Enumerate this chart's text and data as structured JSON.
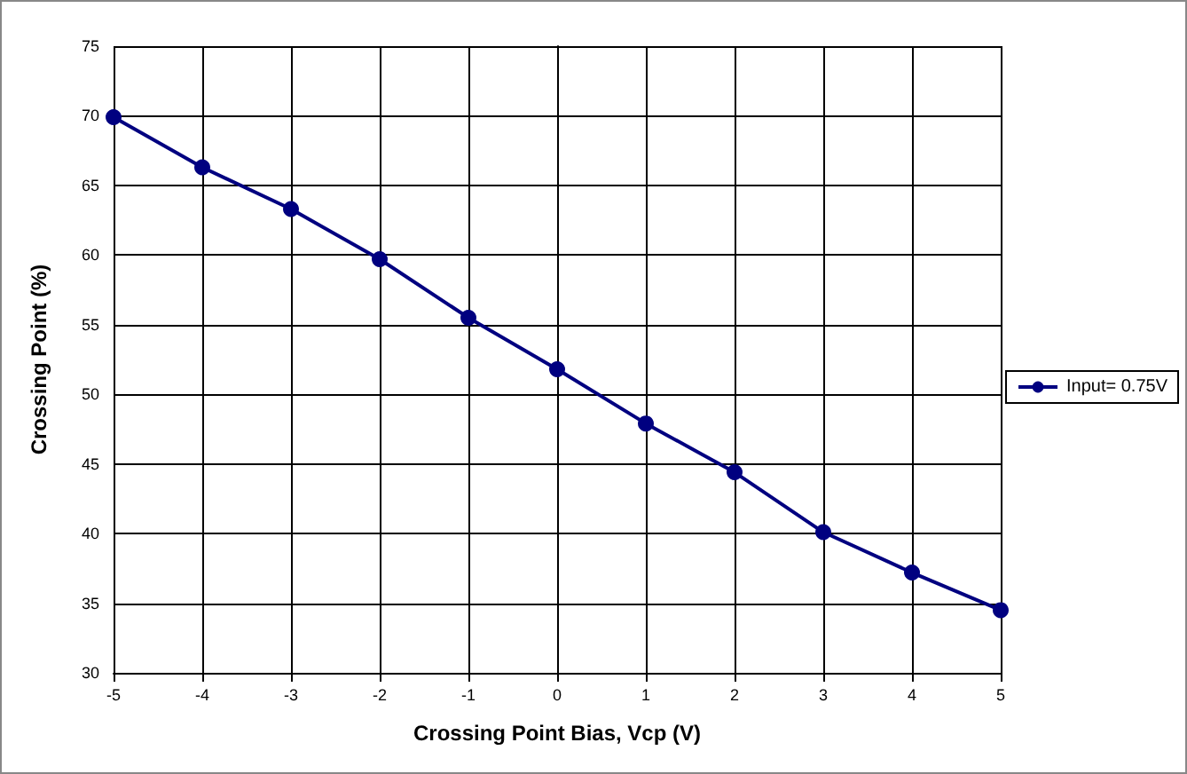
{
  "chart_data": {
    "type": "line",
    "xlabel": "Crossing Point Bias, Vcp (V)",
    "ylabel": "Crossing Point (%)",
    "x": [
      -5,
      -4,
      -3,
      -2,
      -1,
      0,
      1,
      2,
      3,
      4,
      5
    ],
    "series": [
      {
        "name": "Input= 0.75V",
        "color": "#000080",
        "values": [
          69.9,
          66.3,
          63.3,
          59.7,
          55.5,
          51.8,
          47.9,
          44.4,
          40.1,
          37.2,
          34.5
        ]
      }
    ],
    "xlim": [
      -5,
      5
    ],
    "xticks": [
      -5,
      -4,
      -3,
      -2,
      -1,
      0,
      1,
      2,
      3,
      4,
      5
    ],
    "ylim": [
      30,
      75
    ],
    "yticks": [
      30,
      35,
      40,
      45,
      50,
      55,
      60,
      65,
      70,
      75
    ],
    "grid": true,
    "legend": "right",
    "marker": "circle",
    "line_style": "solid"
  }
}
